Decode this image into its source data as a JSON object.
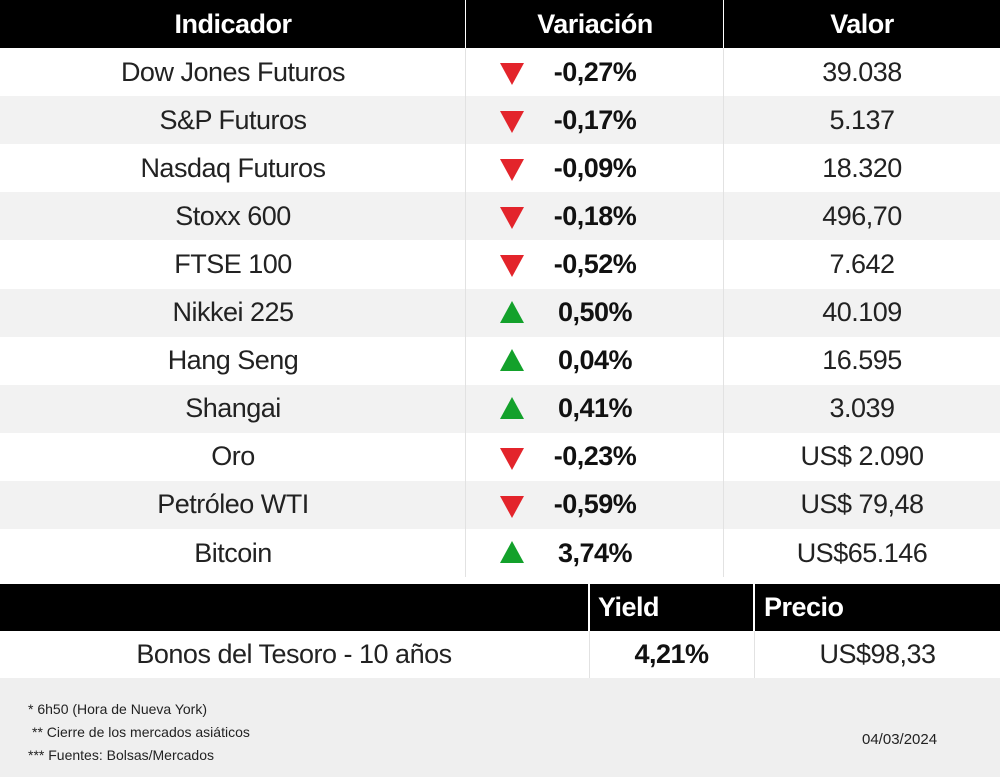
{
  "table": {
    "columns": [
      "Indicador",
      "Variación",
      "Valor"
    ],
    "rows": [
      {
        "indicator": "Dow Jones Futuros",
        "variation": "-0,27%",
        "value": "39.038",
        "direction": "down"
      },
      {
        "indicator": "S&P Futuros",
        "variation": "-0,17%",
        "value": "5.137",
        "direction": "down"
      },
      {
        "indicator": "Nasdaq Futuros",
        "variation": "-0,09%",
        "value": "18.320",
        "direction": "down"
      },
      {
        "indicator": "Stoxx 600",
        "variation": "-0,18%",
        "value": "496,70",
        "direction": "down"
      },
      {
        "indicator": "FTSE 100",
        "variation": "-0,52%",
        "value": "7.642",
        "direction": "down"
      },
      {
        "indicator": "Nikkei 225",
        "variation": "0,50%",
        "value": "40.109",
        "direction": "up"
      },
      {
        "indicator": "Hang Seng",
        "variation": "0,04%",
        "value": "16.595",
        "direction": "up"
      },
      {
        "indicator": "Shangai",
        "variation": "0,41%",
        "value": "3.039",
        "direction": "up"
      },
      {
        "indicator": "Oro",
        "variation": "-0,23%",
        "value": "US$ 2.090",
        "direction": "down"
      },
      {
        "indicator": "Petróleo WTI",
        "variation": "-0,59%",
        "value": "US$ 79,48",
        "direction": "down"
      },
      {
        "indicator": "Bitcoin",
        "variation": "3,74%",
        "value": "US$65.146",
        "direction": "up"
      }
    ]
  },
  "bonds": {
    "columns": [
      "Yield",
      "Precio"
    ],
    "row": {
      "label": "Bonos del Tesoro - 10 años",
      "yield": "4,21%",
      "price": "US$98,33"
    }
  },
  "footer": {
    "notes": [
      "* 6h50 (Hora de Nueva York)",
      "** Cierre de los mercados asiáticos",
      "*** Fuentes: Bolsas/Mercados"
    ],
    "date": "04/03/2024"
  }
}
